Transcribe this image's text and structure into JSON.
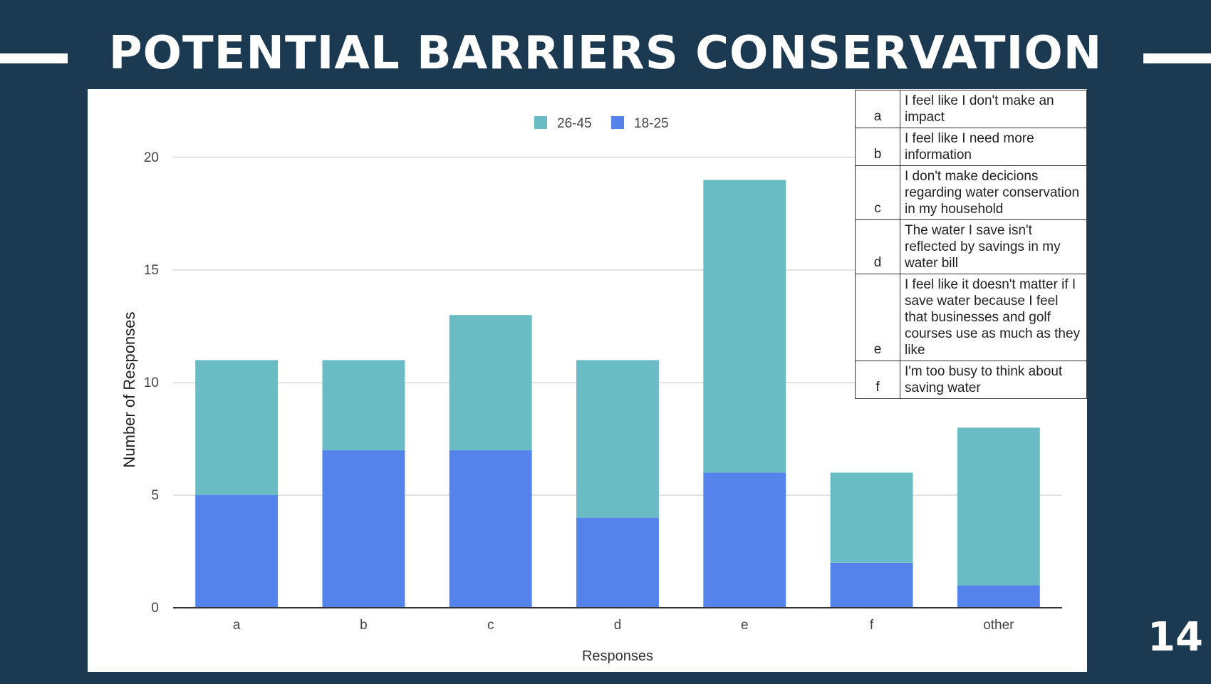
{
  "slide": {
    "title": "POTENTIAL BARRIERS CONSERVATION",
    "page_number": "14"
  },
  "colors": {
    "background": "#1b3a52",
    "series_26_45": "#6abcc4",
    "series_18_25": "#5484eb"
  },
  "chart_data": {
    "type": "bar",
    "stacked": true,
    "categories": [
      "a",
      "b",
      "c",
      "d",
      "e",
      "f",
      "other"
    ],
    "series": [
      {
        "name": "18-25",
        "values": [
          5,
          7,
          7,
          4,
          6,
          2,
          1
        ],
        "color": "#5484eb"
      },
      {
        "name": "26-45",
        "values": [
          6,
          4,
          6,
          7,
          13,
          4,
          7
        ],
        "color": "#6abcc4"
      }
    ],
    "legend_order": [
      "26-45",
      "18-25"
    ],
    "legend_position": "top",
    "title": "",
    "xlabel": "Responses",
    "ylabel": "Number of Responses",
    "ylim": [
      0,
      20
    ],
    "yticks": [
      0,
      5,
      10,
      15,
      20
    ],
    "grid": true
  },
  "legend_table": [
    {
      "code": "a",
      "text": "I feel like I don't make an impact"
    },
    {
      "code": "b",
      "text": "I feel like I need more information"
    },
    {
      "code": "c",
      "text": "I don't make decicions regarding water conservation in my household"
    },
    {
      "code": "d",
      "text": "The water I save isn't reflected by savings in my water bill"
    },
    {
      "code": "e",
      "text": "I feel like it doesn't matter if I save water because I feel that businesses and golf courses use as much as they like"
    },
    {
      "code": "f",
      "text": "I'm too busy to think about saving water"
    }
  ]
}
